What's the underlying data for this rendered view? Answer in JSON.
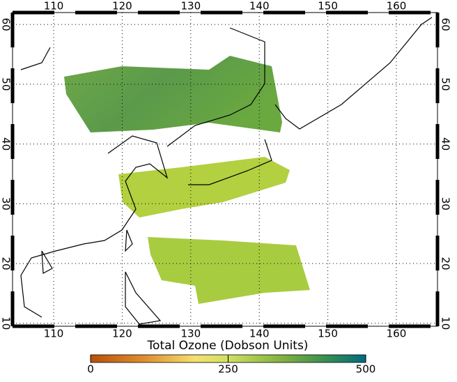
{
  "map": {
    "lon_ticks": [
      110,
      120,
      130,
      140,
      150,
      160
    ],
    "lat_ticks": [
      10,
      20,
      30,
      40,
      50,
      60
    ],
    "lonlim": [
      104,
      166
    ],
    "latlim": [
      9.5,
      62
    ],
    "colorbar": {
      "title": "Total Ozone (Dobson Units)",
      "lim": [
        0,
        500
      ],
      "ticks": [
        0,
        250,
        500
      ]
    }
  }
}
